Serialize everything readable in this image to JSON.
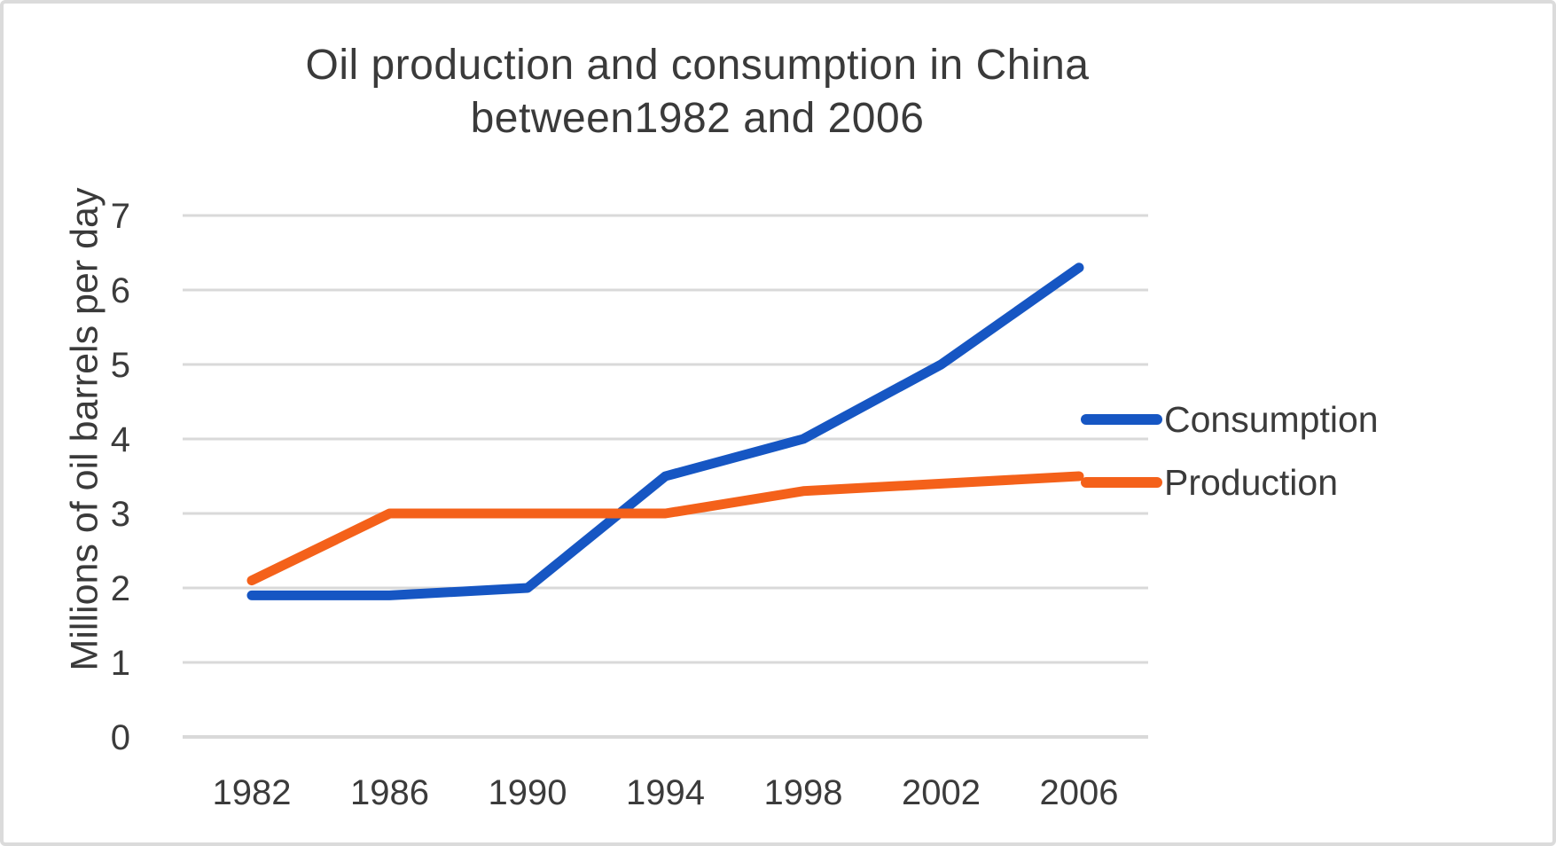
{
  "window": {
    "background": "#ffffff",
    "border_color": "#dbdbdb"
  },
  "chart_data": {
    "type": "line",
    "title": "Oil production and consumption in China between1982 and 2006",
    "title_lines": [
      "Oil production and consumption in China",
      "between1982 and 2006"
    ],
    "ylabel": "Millions of oil barrels per day",
    "xlabel": "",
    "categories": [
      "1982",
      "1986",
      "1990",
      "1994",
      "1998",
      "2002",
      "2006"
    ],
    "y_ticks": [
      "0",
      "1",
      "2",
      "3",
      "4",
      "5",
      "6",
      "7"
    ],
    "ylim": [
      0,
      7
    ],
    "grid": true,
    "grid_color": "#d9d9d9",
    "text_color": "#3b3b3b",
    "legend_position": "right",
    "series": [
      {
        "name": "Consumption",
        "color": "#1656c3",
        "values": [
          1.9,
          1.9,
          2.0,
          3.5,
          4.0,
          5.0,
          6.3
        ]
      },
      {
        "name": "Production",
        "color": "#f4611a",
        "values": [
          2.1,
          3.0,
          3.0,
          3.0,
          3.3,
          3.4,
          3.5
        ]
      }
    ]
  }
}
